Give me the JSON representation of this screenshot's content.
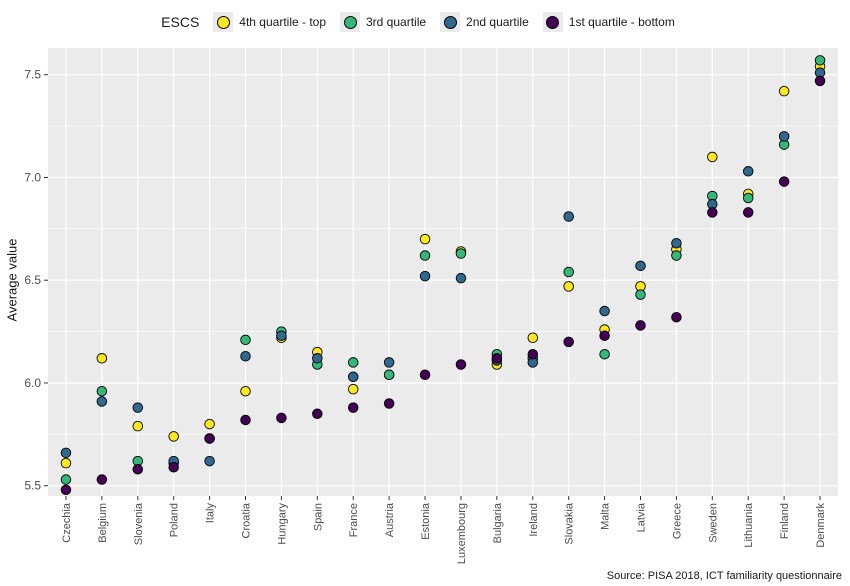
{
  "chart_data": {
    "type": "scatter",
    "title": "",
    "xlabel": "",
    "ylabel": "Average value",
    "ylim": [
      5.45,
      7.63
    ],
    "yticks": [
      5.5,
      6.0,
      6.5,
      7.0,
      7.5
    ],
    "ytick_labels": [
      "5.5",
      "6.0",
      "6.5",
      "7.0",
      "7.5"
    ],
    "grid": true,
    "legend_title": "ESCS",
    "legend_position": "top",
    "categories": [
      "Czechia",
      "Belgium",
      "Slovenia",
      "Poland",
      "Italy",
      "Croatia",
      "Hungary",
      "Spain",
      "France",
      "Austria",
      "Estonia",
      "Luxembourg",
      "Bulgaria",
      "Ireland",
      "Slovakia",
      "Malta",
      "Latvia",
      "Greece",
      "Sweden",
      "Lithuania",
      "Finland",
      "Denmark"
    ],
    "series": [
      {
        "name": "4th quartile - top",
        "color": "#fde725",
        "values": [
          5.61,
          6.12,
          5.79,
          5.74,
          5.8,
          5.96,
          6.22,
          6.15,
          5.97,
          6.04,
          6.7,
          6.64,
          6.09,
          6.22,
          6.47,
          6.26,
          6.47,
          6.65,
          7.1,
          6.92,
          7.42,
          7.54
        ]
      },
      {
        "name": "3rd quartile",
        "color": "#35b779",
        "values": [
          5.53,
          5.96,
          5.62,
          5.61,
          5.73,
          6.21,
          6.25,
          6.09,
          6.1,
          6.04,
          6.62,
          6.63,
          6.14,
          6.12,
          6.54,
          6.14,
          6.43,
          6.62,
          6.91,
          6.9,
          7.16,
          7.57
        ]
      },
      {
        "name": "2nd quartile",
        "color": "#31688e",
        "values": [
          5.66,
          5.91,
          5.88,
          5.62,
          5.62,
          6.13,
          6.23,
          6.12,
          6.03,
          6.1,
          6.52,
          6.51,
          6.11,
          6.1,
          6.81,
          6.35,
          6.57,
          6.68,
          6.87,
          7.03,
          7.2,
          7.51
        ]
      },
      {
        "name": "1st quartile - bottom",
        "color": "#440154",
        "values": [
          5.48,
          5.53,
          5.58,
          5.59,
          5.73,
          5.82,
          5.83,
          5.85,
          5.88,
          5.9,
          6.04,
          6.09,
          6.12,
          6.14,
          6.2,
          6.23,
          6.28,
          6.32,
          6.83,
          6.83,
          6.98,
          7.47
        ]
      }
    ],
    "source": "Source: PISA 2018, ICT familiarity questionnaire"
  }
}
